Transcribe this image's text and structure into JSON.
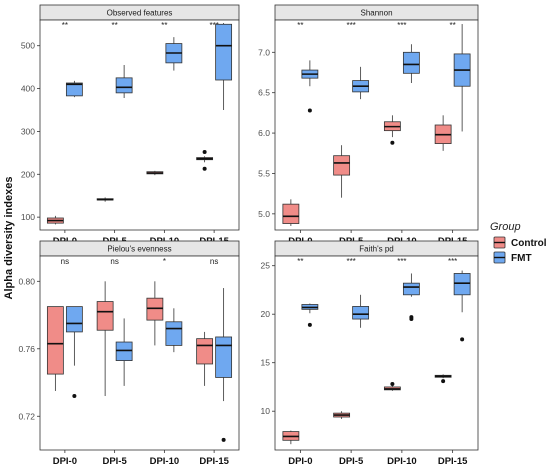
{
  "ylabel": "Alpha diversity indexes",
  "legend": {
    "title": "Group",
    "items": [
      {
        "label": "Control",
        "color": "#F08C88"
      },
      {
        "label": "FMT",
        "color": "#6FA8F0"
      }
    ]
  },
  "chart_data": [
    {
      "type": "box",
      "title": "Observed features",
      "categories": [
        "DPI-0",
        "DPI-5",
        "DPI-10",
        "DPI-15"
      ],
      "ylim": [
        70,
        560
      ],
      "yticks": [
        "100",
        "200",
        "300",
        "400",
        "500"
      ],
      "significance": [
        "**",
        "**",
        "**",
        "***"
      ],
      "series": [
        {
          "name": "Control",
          "boxes": [
            {
              "min": 83,
              "q1": 86,
              "median": 92,
              "q3": 98,
              "max": 103,
              "outliers": []
            },
            {
              "min": 136,
              "q1": 140,
              "median": 141,
              "q3": 143,
              "max": 146,
              "outliers": []
            },
            {
              "min": 198,
              "q1": 201,
              "median": 203,
              "q3": 206,
              "max": 208,
              "outliers": []
            },
            {
              "min": 228,
              "q1": 234,
              "median": 236,
              "q3": 239,
              "max": 242,
              "outliers": [
                213,
                252
              ]
            }
          ]
        },
        {
          "name": "FMT",
          "boxes": [
            {
              "min": 380,
              "q1": 383,
              "median": 410,
              "q3": 413,
              "max": 418,
              "outliers": []
            },
            {
              "min": 378,
              "q1": 390,
              "median": 403,
              "q3": 425,
              "max": 455,
              "outliers": []
            },
            {
              "min": 442,
              "q1": 460,
              "median": 483,
              "q3": 505,
              "max": 520,
              "outliers": []
            },
            {
              "min": 350,
              "q1": 420,
              "median": 500,
              "q3": 550,
              "max": 553,
              "outliers": []
            }
          ]
        }
      ]
    },
    {
      "type": "box",
      "title": "Shannon",
      "categories": [
        "DPI-0",
        "DPI-5",
        "DPI-10",
        "DPI-15"
      ],
      "ylim": [
        4.8,
        7.4
      ],
      "yticks": [
        "5.0",
        "5.5",
        "6.0",
        "6.5",
        "7.0"
      ],
      "significance": [
        "**",
        "***",
        "***",
        "**"
      ],
      "series": [
        {
          "name": "Control",
          "boxes": [
            {
              "min": 4.85,
              "q1": 4.88,
              "median": 4.97,
              "q3": 5.12,
              "max": 5.18,
              "outliers": []
            },
            {
              "min": 5.2,
              "q1": 5.48,
              "median": 5.63,
              "q3": 5.72,
              "max": 5.85,
              "outliers": []
            },
            {
              "min": 5.95,
              "q1": 6.03,
              "median": 6.08,
              "q3": 6.14,
              "max": 6.22,
              "outliers": [
                5.88
              ]
            },
            {
              "min": 5.78,
              "q1": 5.87,
              "median": 5.98,
              "q3": 6.1,
              "max": 6.22,
              "outliers": []
            }
          ]
        },
        {
          "name": "FMT",
          "boxes": [
            {
              "min": 6.58,
              "q1": 6.68,
              "median": 6.73,
              "q3": 6.78,
              "max": 6.9,
              "outliers": [
                6.28
              ]
            },
            {
              "min": 6.42,
              "q1": 6.51,
              "median": 6.58,
              "q3": 6.65,
              "max": 6.82,
              "outliers": []
            },
            {
              "min": 6.62,
              "q1": 6.74,
              "median": 6.85,
              "q3": 7.0,
              "max": 7.1,
              "outliers": []
            },
            {
              "min": 6.02,
              "q1": 6.58,
              "median": 6.78,
              "q3": 6.98,
              "max": 7.35,
              "outliers": []
            }
          ]
        }
      ]
    },
    {
      "type": "box",
      "title": "Pielou's evenness",
      "categories": [
        "DPI-0",
        "DPI-5",
        "DPI-10",
        "DPI-15"
      ],
      "ylim": [
        0.7,
        0.815
      ],
      "yticks": [
        "0.72",
        "0.76",
        "0.80"
      ],
      "significance": [
        "ns",
        "ns",
        "*",
        "ns"
      ],
      "series": [
        {
          "name": "Control",
          "boxes": [
            {
              "min": 0.735,
              "q1": 0.745,
              "median": 0.763,
              "q3": 0.785,
              "max": 0.785,
              "outliers": []
            },
            {
              "min": 0.732,
              "q1": 0.771,
              "median": 0.782,
              "q3": 0.788,
              "max": 0.8,
              "outliers": []
            },
            {
              "min": 0.762,
              "q1": 0.777,
              "median": 0.784,
              "q3": 0.79,
              "max": 0.8,
              "outliers": []
            },
            {
              "min": 0.738,
              "q1": 0.751,
              "median": 0.762,
              "q3": 0.766,
              "max": 0.77,
              "outliers": []
            }
          ]
        },
        {
          "name": "FMT",
          "boxes": [
            {
              "min": 0.75,
              "q1": 0.77,
              "median": 0.775,
              "q3": 0.785,
              "max": 0.785,
              "outliers": [
                0.732
              ]
            },
            {
              "min": 0.738,
              "q1": 0.753,
              "median": 0.759,
              "q3": 0.764,
              "max": 0.778,
              "outliers": []
            },
            {
              "min": 0.758,
              "q1": 0.762,
              "median": 0.772,
              "q3": 0.776,
              "max": 0.784,
              "outliers": []
            },
            {
              "min": 0.729,
              "q1": 0.743,
              "median": 0.762,
              "q3": 0.767,
              "max": 0.796,
              "outliers": [
                0.706
              ]
            }
          ]
        }
      ]
    },
    {
      "type": "box",
      "title": "Faith's pd",
      "categories": [
        "DPI-0",
        "DPI-5",
        "DPI-10",
        "DPI-15"
      ],
      "ylim": [
        6,
        26
      ],
      "yticks": [
        "10",
        "15",
        "20",
        "25"
      ],
      "significance": [
        "**",
        "***",
        "***",
        "***"
      ],
      "series": [
        {
          "name": "Control",
          "boxes": [
            {
              "min": 6.6,
              "q1": 7.0,
              "median": 7.4,
              "q3": 7.9,
              "max": 8.0,
              "outliers": []
            },
            {
              "min": 9.2,
              "q1": 9.4,
              "median": 9.6,
              "q3": 9.8,
              "max": 10.0,
              "outliers": []
            },
            {
              "min": 12.1,
              "q1": 12.2,
              "median": 12.3,
              "q3": 12.5,
              "max": 12.6,
              "outliers": [
                12.8
              ]
            },
            {
              "min": 13.4,
              "q1": 13.5,
              "median": 13.6,
              "q3": 13.7,
              "max": 13.8,
              "outliers": [
                13.1
              ]
            }
          ]
        },
        {
          "name": "FMT",
          "boxes": [
            {
              "min": 20.1,
              "q1": 20.5,
              "median": 20.7,
              "q3": 21.0,
              "max": 21.1,
              "outliers": [
                18.9
              ]
            },
            {
              "min": 18.6,
              "q1": 19.5,
              "median": 20.0,
              "q3": 20.8,
              "max": 22.0,
              "outliers": []
            },
            {
              "min": 21.8,
              "q1": 22.0,
              "median": 22.8,
              "q3": 23.2,
              "max": 24.2,
              "outliers": [
                19.5,
                19.7
              ]
            },
            {
              "min": 20.2,
              "q1": 22.0,
              "median": 23.2,
              "q3": 24.2,
              "max": 24.5,
              "outliers": [
                17.4
              ]
            }
          ]
        }
      ]
    }
  ]
}
